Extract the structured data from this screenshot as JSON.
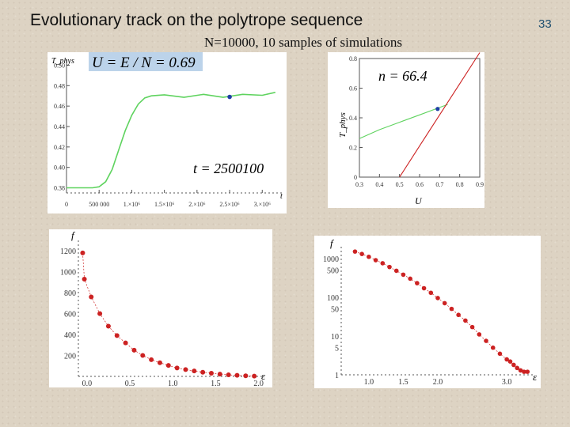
{
  "slide": {
    "title": "Evolutionary track on the polytrope sequence",
    "subtitle": "N=10000, 10 samples of simulations",
    "page_number": "33"
  },
  "colors": {
    "green_series": "#5fd35f",
    "red_series": "#cc2222",
    "blue_marker": "#1f3fa6",
    "label_box": "#bcd3ea"
  },
  "chart_data": [
    {
      "type": "line",
      "panel": "top-left",
      "ylabel": "T_phys",
      "annotation_box": "U = E / N = 0.69",
      "annotation_time": "t = 2500100",
      "xlabel": "t",
      "xlim": [
        0,
        3300000
      ],
      "ylim": [
        0.375,
        0.505
      ],
      "x_ticks": [
        "0",
        "500 000",
        "1.×10⁶",
        "1.5×10⁶",
        "2.×10⁶",
        "2.5×10⁶",
        "3.×10⁶"
      ],
      "y_ticks": [
        "0.38",
        "0.40",
        "0.42",
        "0.44",
        "0.46",
        "0.48",
        "0.50"
      ],
      "series": [
        {
          "color": "green",
          "x": [
            0,
            200000,
            400000,
            500000,
            600000,
            700000,
            800000,
            900000,
            1000000,
            1100000,
            1200000,
            1300000,
            1500000,
            1800000,
            2100000,
            2400000,
            2700000,
            3000000,
            3200000
          ],
          "y": [
            0.38,
            0.38,
            0.38,
            0.381,
            0.386,
            0.398,
            0.417,
            0.436,
            0.451,
            0.462,
            0.468,
            0.47,
            0.471,
            0.469,
            0.471,
            0.469,
            0.471,
            0.471,
            0.473
          ]
        }
      ],
      "marker": {
        "x": 2500100,
        "y": 0.469,
        "color": "blue"
      }
    },
    {
      "type": "line",
      "panel": "top-right",
      "ylabel": "T_phys",
      "xlabel": "U",
      "annotation": "n = 66.4",
      "xlim": [
        0.3,
        0.9
      ],
      "ylim": [
        0,
        0.8
      ],
      "x_ticks": [
        "0.3",
        "0.4",
        "0.5",
        "0.6",
        "0.7",
        "0.8",
        "0.9"
      ],
      "y_ticks": [
        "0",
        "0.2",
        "0.4",
        "0.6",
        "0.8"
      ],
      "series": [
        {
          "color": "green",
          "x": [
            0.3,
            0.4,
            0.5,
            0.6,
            0.7,
            0.74
          ],
          "y": [
            0.26,
            0.32,
            0.37,
            0.42,
            0.47,
            0.49
          ]
        },
        {
          "color": "red",
          "x": [
            0.5,
            0.6,
            0.7,
            0.8,
            0.9
          ],
          "y": [
            0.0,
            0.21,
            0.42,
            0.63,
            0.84
          ]
        }
      ],
      "marker": {
        "x": 0.69,
        "y": 0.46,
        "color": "blue"
      }
    },
    {
      "type": "scatter",
      "panel": "bottom-left",
      "ylabel": "f",
      "xlabel": "ε",
      "xlim": [
        -0.1,
        2.05
      ],
      "ylim": [
        0,
        1300
      ],
      "x_ticks": [
        "0.0",
        "0.5",
        "1.0",
        "1.5",
        "2.0"
      ],
      "y_ticks": [
        "200",
        "400",
        "600",
        "800",
        "1000",
        "1200"
      ],
      "series": [
        {
          "color": "red",
          "x": [
            -0.05,
            -0.03,
            0.05,
            0.15,
            0.25,
            0.35,
            0.45,
            0.55,
            0.65,
            0.75,
            0.85,
            0.95,
            1.05,
            1.15,
            1.25,
            1.35,
            1.45,
            1.55,
            1.65,
            1.75,
            1.85,
            1.95
          ],
          "y": [
            1180,
            930,
            760,
            600,
            480,
            390,
            320,
            250,
            200,
            160,
            130,
            105,
            80,
            65,
            52,
            40,
            30,
            22,
            15,
            10,
            6,
            3
          ]
        }
      ]
    },
    {
      "type": "scatter",
      "panel": "bottom-right",
      "ylabel": "f",
      "xlabel": "ε",
      "yscale": "log",
      "xlim": [
        0.6,
        3.4
      ],
      "ylim": [
        1,
        2000
      ],
      "x_ticks": [
        "1.0",
        "1.5",
        "2.0",
        "3.0"
      ],
      "y_ticks": [
        "1",
        "5",
        "10",
        "50",
        "100",
        "500",
        "1000"
      ],
      "series": [
        {
          "color": "red",
          "x": [
            0.8,
            0.9,
            1.0,
            1.1,
            1.2,
            1.3,
            1.4,
            1.5,
            1.6,
            1.7,
            1.8,
            1.9,
            2.0,
            2.1,
            2.2,
            2.3,
            2.4,
            2.5,
            2.6,
            2.7,
            2.8,
            2.9,
            3.0,
            3.05,
            3.1,
            3.15,
            3.2,
            3.25,
            3.3
          ],
          "y": [
            1500,
            1300,
            1100,
            900,
            750,
            600,
            480,
            380,
            300,
            230,
            170,
            130,
            95,
            70,
            50,
            35,
            25,
            17,
            11,
            7.5,
            5,
            3.5,
            2.5,
            2.2,
            1.8,
            1.5,
            1.3,
            1.2,
            1.2
          ]
        }
      ]
    }
  ]
}
